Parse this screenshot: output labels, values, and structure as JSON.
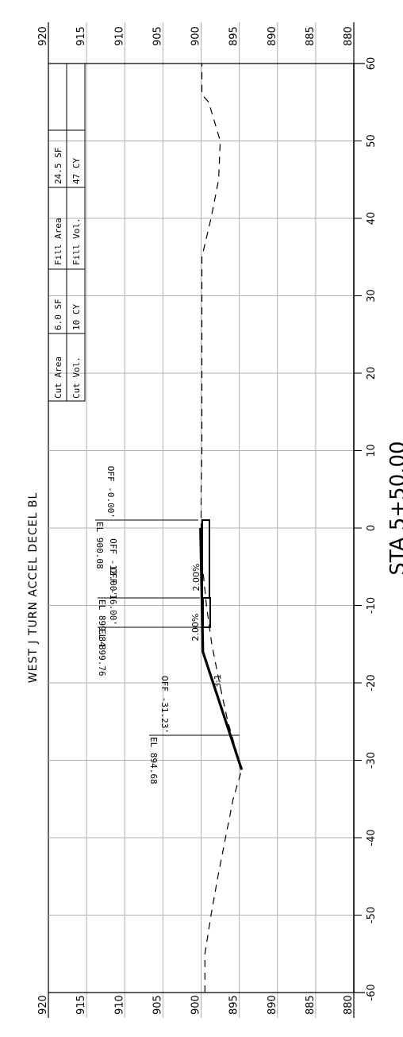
{
  "title": "WEST J TURN ACCEL DECEL BL",
  "station": "STA 5+50.00",
  "elevation_ticks": [
    "920",
    "915",
    "910",
    "905",
    "900",
    "895",
    "890",
    "885",
    "880"
  ],
  "offset_ticks": [
    "-60",
    "-50",
    "-40",
    "-30",
    "-20",
    "-10",
    "0",
    "10",
    "20",
    "30",
    "40",
    "50",
    "60"
  ],
  "quantities": {
    "cut_area_label": "Cut Area",
    "cut_area_value": "6.0 SF",
    "cut_vol_label": "Cut Vol.",
    "cut_vol_value": "10 CY",
    "fill_area_label": "Fill Area",
    "fill_area_value": "24.5 SF",
    "fill_vol_label": "Fill Vol.",
    "fill_vol_value": "47 CY"
  },
  "point_labels": [
    {
      "off": "OFF -0.00'",
      "el": "EL 900.08"
    },
    {
      "off": "OFF -12.00'",
      "el": "EL 899.84"
    },
    {
      "off": "OFF -16.00'",
      "el": "EL 899.76"
    },
    {
      "off": "OFF -31.23'",
      "el": "EL 894.68"
    }
  ],
  "slope_labels": [
    "2.00%",
    "2.00%",
    "3:1"
  ],
  "chart_data": {
    "type": "line",
    "x_range": [
      -60,
      60
    ],
    "y_range": [
      880,
      920
    ],
    "grid": true,
    "series": [
      {
        "style": "dashed",
        "points": [
          [
            -60,
            899.5
          ],
          [
            -55,
            899.5
          ],
          [
            -50,
            898.7
          ],
          [
            -45,
            897.8
          ],
          [
            -40,
            896.8
          ],
          [
            -35,
            895.8
          ],
          [
            -31.23,
            894.68
          ],
          [
            -25,
            896.5
          ],
          [
            -20,
            897.6
          ],
          [
            -15,
            898.6
          ],
          [
            -10,
            899.3
          ],
          [
            -5,
            899.8
          ],
          [
            0,
            900.0
          ],
          [
            5,
            900.0
          ],
          [
            10,
            899.9
          ],
          [
            20,
            899.9
          ],
          [
            30,
            899.9
          ],
          [
            35,
            899.9
          ],
          [
            40,
            898.7
          ],
          [
            45,
            897.7
          ],
          [
            50,
            897.5
          ],
          [
            55,
            899.0
          ],
          [
            56,
            899.9
          ],
          [
            60,
            899.9
          ]
        ]
      },
      {
        "style": "solid-heavy",
        "points": [
          [
            -31.23,
            894.68
          ],
          [
            -16,
            899.76
          ],
          [
            -12,
            899.84
          ],
          [
            0,
            900.08
          ]
        ]
      }
    ]
  }
}
